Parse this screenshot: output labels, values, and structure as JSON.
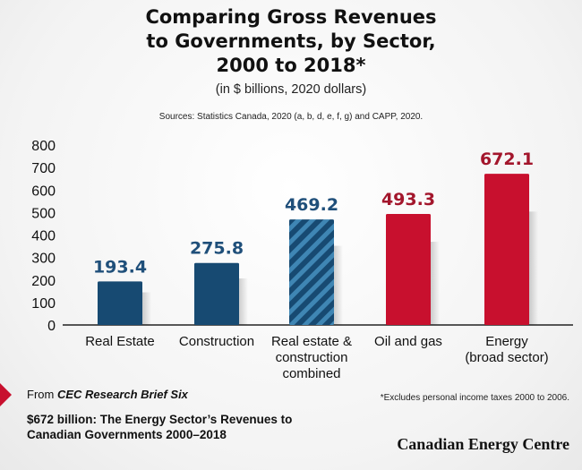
{
  "title_lines": [
    "Comparing Gross Revenues",
    "to Governments, by Sector,",
    "2000 to 2018*"
  ],
  "subtitle": "(in $ billions, 2020 dollars)",
  "sources": "Sources: Statistics Canada, 2020 (a, b, d, e, f, g) and CAPP, 2020.",
  "footer": {
    "from_prefix": "From ",
    "from_source": "CEC Research Brief Six",
    "report_title": "$672 billion: The Energy Sector’s Revenues to Canadian Governments 2000–2018",
    "footnote": "*Excludes personal income taxes 2000 to 2006.",
    "brand": "Canadian Energy Centre"
  },
  "colors": {
    "blue": "#174a72",
    "blue_label": "#1f4f7a",
    "red": "#c8102e",
    "red_label": "#a3162c"
  },
  "chart_data": {
    "type": "bar",
    "title": "Comparing Gross Revenues to Governments, by Sector, 2000 to 2018*",
    "subtitle": "(in $ billions, 2020 dollars)",
    "categories": [
      [
        "Real Estate"
      ],
      [
        "Construction"
      ],
      [
        "Real estate &",
        "construction",
        "combined"
      ],
      [
        "Oil and gas"
      ],
      [
        "Energy",
        "(broad sector)"
      ]
    ],
    "values": [
      193.4,
      275.8,
      469.2,
      493.3,
      672.1
    ],
    "value_labels": [
      "193.4",
      "275.8",
      "469.2",
      "493.3",
      "672.1"
    ],
    "bar_styles": [
      "blue",
      "blue",
      "blue-striped",
      "red",
      "red"
    ],
    "ylim": [
      0,
      800
    ],
    "yticks": [
      0,
      100,
      200,
      300,
      400,
      500,
      600,
      700,
      800
    ],
    "grid": false,
    "legend": false
  }
}
